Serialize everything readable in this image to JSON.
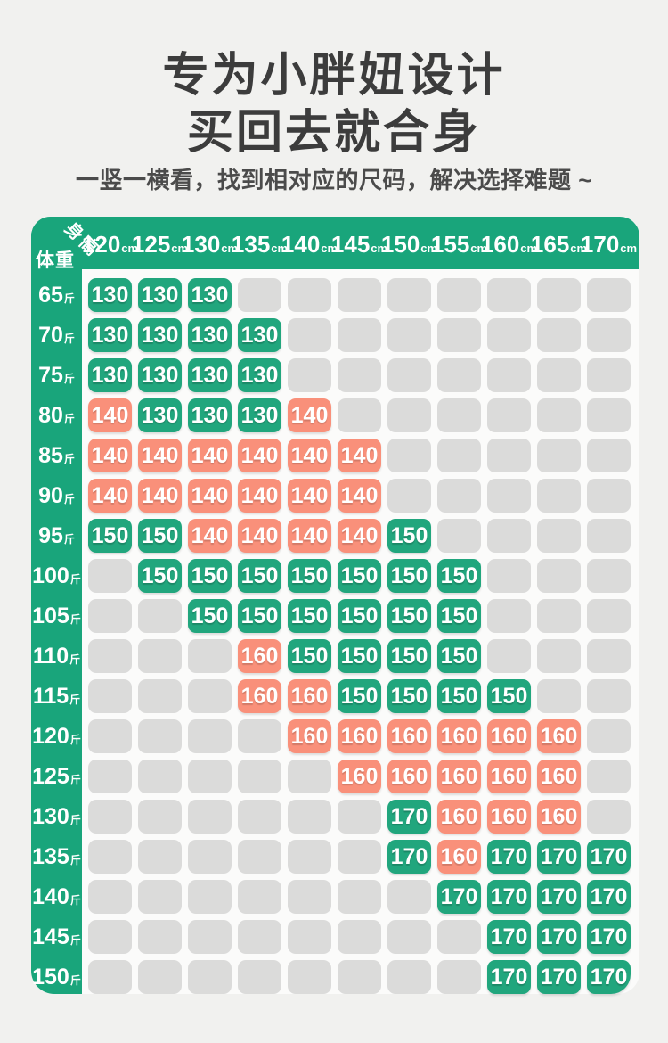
{
  "page": {
    "title_line1": "专为小胖妞设计",
    "title_line2": "买回去就合身",
    "subtitle": "一竖一横看，找到相对应的尺码，解决选择难题 ~"
  },
  "axis": {
    "height_label": "身高",
    "weight_label": "体重"
  },
  "colors": {
    "green": "#21a67d",
    "salmon": "#f9907a",
    "empty_cell": "#dbdbda",
    "header_band": "#19a57b",
    "panel": "#fbfbfa",
    "background": "#f1f1ef",
    "title_text": "#3c3c3c",
    "subtitle_text": "#4b4b4b",
    "cell_text": "#ffffff"
  },
  "chart_data": {
    "type": "table",
    "title": "专为小胖妞设计 买回去就合身",
    "x_label": "身高",
    "y_label": "体重",
    "x_unit": "cm",
    "y_unit": "斤",
    "x_categories": [
      "120",
      "125",
      "130",
      "135",
      "140",
      "145",
      "150",
      "155",
      "160",
      "165",
      "170"
    ],
    "y_categories": [
      "65",
      "70",
      "75",
      "80",
      "85",
      "90",
      "95",
      "100",
      "105",
      "110",
      "115",
      "120",
      "125",
      "130",
      "135",
      "140",
      "145",
      "150"
    ],
    "cell_legend": "g = green recommended size, s = salmon recommended size, empty string = no recommendation",
    "cells": [
      [
        "g130",
        "g130",
        "g130",
        "",
        "",
        "",
        "",
        "",
        "",
        "",
        ""
      ],
      [
        "g130",
        "g130",
        "g130",
        "g130",
        "",
        "",
        "",
        "",
        "",
        "",
        ""
      ],
      [
        "g130",
        "g130",
        "g130",
        "g130",
        "",
        "",
        "",
        "",
        "",
        "",
        ""
      ],
      [
        "s140",
        "g130",
        "g130",
        "g130",
        "s140",
        "",
        "",
        "",
        "",
        "",
        ""
      ],
      [
        "s140",
        "s140",
        "s140",
        "s140",
        "s140",
        "s140",
        "",
        "",
        "",
        "",
        ""
      ],
      [
        "s140",
        "s140",
        "s140",
        "s140",
        "s140",
        "s140",
        "",
        "",
        "",
        "",
        ""
      ],
      [
        "g150",
        "g150",
        "s140",
        "s140",
        "s140",
        "s140",
        "g150",
        "",
        "",
        "",
        ""
      ],
      [
        "",
        "g150",
        "g150",
        "g150",
        "g150",
        "g150",
        "g150",
        "g150",
        "",
        "",
        ""
      ],
      [
        "",
        "",
        "g150",
        "g150",
        "g150",
        "g150",
        "g150",
        "g150",
        "",
        "",
        ""
      ],
      [
        "",
        "",
        "",
        "s160",
        "g150",
        "g150",
        "g150",
        "g150",
        "",
        "",
        ""
      ],
      [
        "",
        "",
        "",
        "s160",
        "s160",
        "g150",
        "g150",
        "g150",
        "g150",
        "",
        ""
      ],
      [
        "",
        "",
        "",
        "",
        "s160",
        "s160",
        "s160",
        "s160",
        "s160",
        "s160",
        ""
      ],
      [
        "",
        "",
        "",
        "",
        "",
        "s160",
        "s160",
        "s160",
        "s160",
        "s160",
        ""
      ],
      [
        "",
        "",
        "",
        "",
        "",
        "",
        "g170",
        "s160",
        "s160",
        "s160",
        ""
      ],
      [
        "",
        "",
        "",
        "",
        "",
        "",
        "g170",
        "s160",
        "g170",
        "g170",
        "g170"
      ],
      [
        "",
        "",
        "",
        "",
        "",
        "",
        "",
        "g170",
        "g170",
        "g170",
        "g170"
      ],
      [
        "",
        "",
        "",
        "",
        "",
        "",
        "",
        "",
        "g170",
        "g170",
        "g170"
      ],
      [
        "",
        "",
        "",
        "",
        "",
        "",
        "",
        "",
        "g170",
        "g170",
        "g170"
      ]
    ]
  }
}
